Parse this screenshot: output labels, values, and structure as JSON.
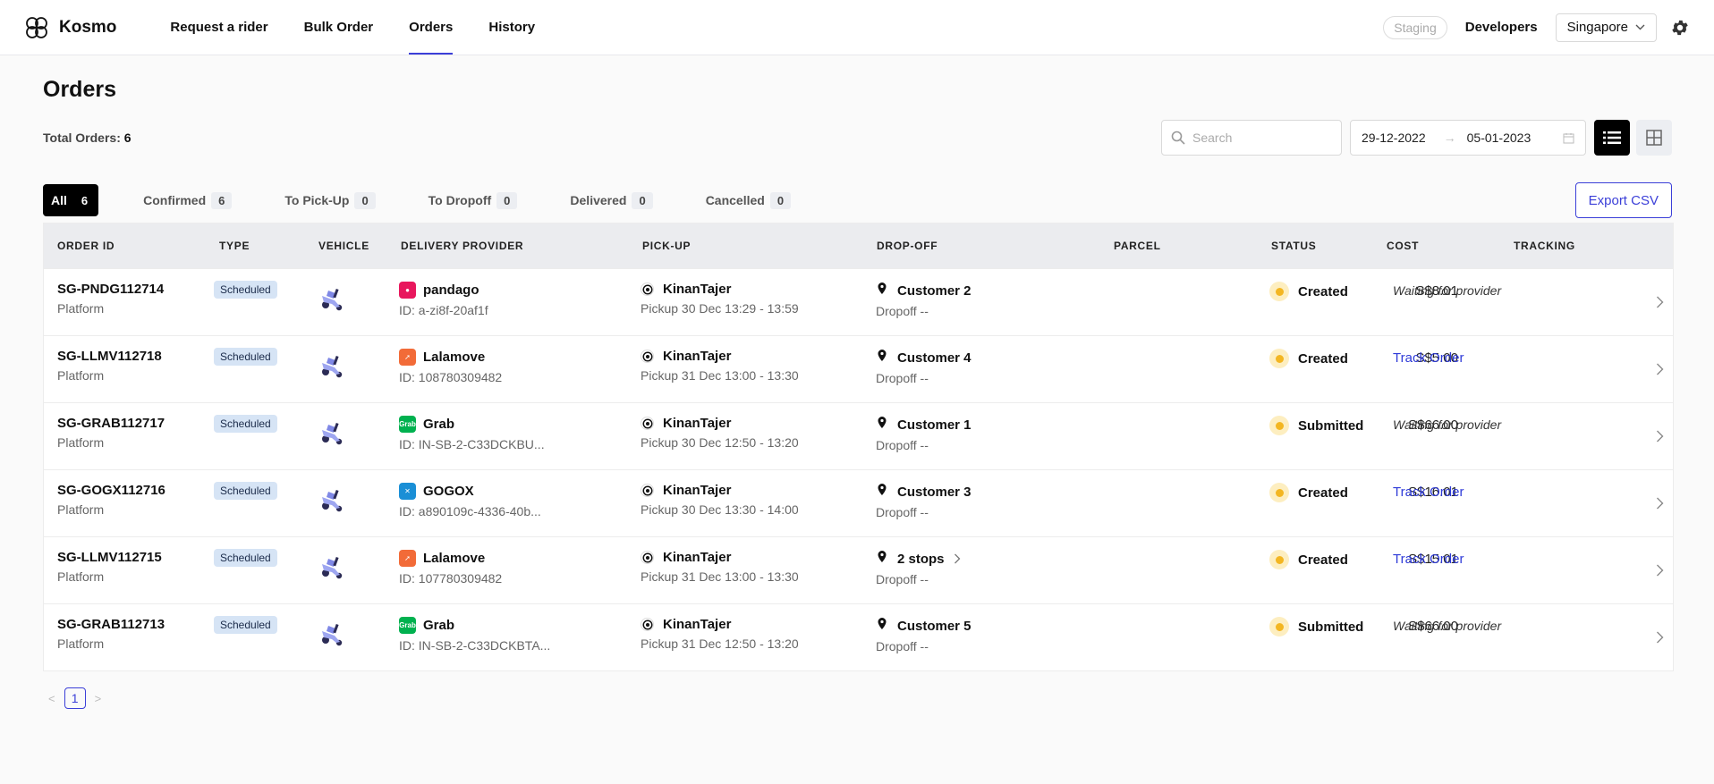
{
  "app": {
    "name": "Kosmo"
  },
  "nav": [
    {
      "label": "Request a rider",
      "active": false
    },
    {
      "label": "Bulk Order",
      "active": false
    },
    {
      "label": "Orders",
      "active": true
    },
    {
      "label": "History",
      "active": false
    }
  ],
  "topright": {
    "env": "Staging",
    "developers": "Developers",
    "region": "Singapore"
  },
  "page": {
    "title": "Orders",
    "total_label": "Total Orders:",
    "total_value": "6",
    "search_placeholder": "Search",
    "date_from": "29-12-2022",
    "date_to": "05-01-2023",
    "export_label": "Export CSV"
  },
  "tabs": [
    {
      "label": "All",
      "count": "6",
      "active": true
    },
    {
      "label": "Confirmed",
      "count": "6",
      "active": false
    },
    {
      "label": "To Pick-Up",
      "count": "0",
      "active": false
    },
    {
      "label": "To Dropoff",
      "count": "0",
      "active": false
    },
    {
      "label": "Delivered",
      "count": "0",
      "active": false
    },
    {
      "label": "Cancelled",
      "count": "0",
      "active": false
    }
  ],
  "columns": [
    "ORDER ID",
    "TYPE",
    "VEHICLE",
    "DELIVERY PROVIDER",
    "PICK-UP",
    "DROP-OFF",
    "PARCEL",
    "STATUS",
    "COST",
    "TRACKING"
  ],
  "provider_colors": {
    "pandago": "#e8175d",
    "Lalamove": "#f26b38",
    "Grab": "#00b14f",
    "GOGOX": "#1a8fd6"
  },
  "rows": [
    {
      "id": "SG-PNDG112714",
      "platform": "Platform",
      "type": "Scheduled",
      "provider": "pandago",
      "provider_id": "ID: a-zi8f-20af1f",
      "pickup_name": "KinanTajer",
      "pickup_time": "Pickup 30 Dec 13:29 - 13:59",
      "drop_name": "Customer 2",
      "drop_time": "Dropoff --",
      "status": "Created",
      "cost": "S$8.01",
      "tracking": "Waiting for provider",
      "tracking_link": false
    },
    {
      "id": "SG-LLMV112718",
      "platform": "Platform",
      "type": "Scheduled",
      "provider": "Lalamove",
      "provider_id": "ID: 108780309482",
      "pickup_name": "KinanTajer",
      "pickup_time": "Pickup 31 Dec 13:00 - 13:30",
      "drop_name": "Customer 4",
      "drop_time": "Dropoff --",
      "status": "Created",
      "cost": "S$5.00",
      "tracking": "Track Order",
      "tracking_link": true
    },
    {
      "id": "SG-GRAB112717",
      "platform": "Platform",
      "type": "Scheduled",
      "provider": "Grab",
      "provider_id": "ID: IN-SB-2-C33DCKBU...",
      "pickup_name": "KinanTajer",
      "pickup_time": "Pickup 30 Dec 12:50 - 13:20",
      "drop_name": "Customer 1",
      "drop_time": "Dropoff --",
      "status": "Submitted",
      "cost": "S$66.00",
      "tracking": "Waiting for provider",
      "tracking_link": false
    },
    {
      "id": "SG-GOGX112716",
      "platform": "Platform",
      "type": "Scheduled",
      "provider": "GOGOX",
      "provider_id": "ID: a890109c-4336-40b...",
      "pickup_name": "KinanTajer",
      "pickup_time": "Pickup 30 Dec 13:30 - 14:00",
      "drop_name": "Customer 3",
      "drop_time": "Dropoff --",
      "status": "Created",
      "cost": "S$16.01",
      "tracking": "Track Order",
      "tracking_link": true
    },
    {
      "id": "SG-LLMV112715",
      "platform": "Platform",
      "type": "Scheduled",
      "provider": "Lalamove",
      "provider_id": "ID: 107780309482",
      "pickup_name": "KinanTajer",
      "pickup_time": "Pickup 31 Dec 13:00 - 13:30",
      "drop_name": "2 stops",
      "drop_time": "Dropoff --",
      "status": "Created",
      "cost": "S$15.01",
      "tracking": "Track Order",
      "tracking_link": true
    },
    {
      "id": "SG-GRAB112713",
      "platform": "Platform",
      "type": "Scheduled",
      "provider": "Grab",
      "provider_id": "ID: IN-SB-2-C33DCKBTA...",
      "pickup_name": "KinanTajer",
      "pickup_time": "Pickup 31 Dec 12:50 - 13:20",
      "drop_name": "Customer 5",
      "drop_time": "Dropoff --",
      "status": "Submitted",
      "cost": "S$66.00",
      "tracking": "Waiting for provider",
      "tracking_link": false
    }
  ],
  "pagination": {
    "current": "1"
  }
}
